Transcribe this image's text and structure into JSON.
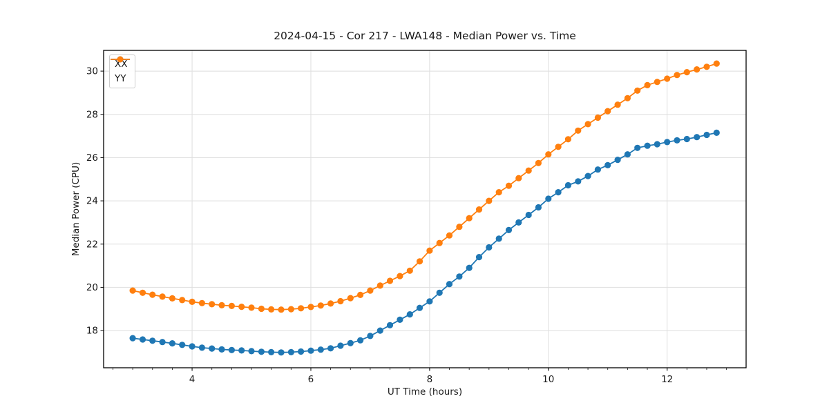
{
  "figure_title": "2024-04-15 - Cor 217 - LWA148 - Median Power vs. Time",
  "chart_data": {
    "type": "line",
    "title": "2024-04-15 - Cor 217 - LWA148 - Median Power vs. Time",
    "xlabel": "UT Time (hours)",
    "ylabel": "Median Power (CPU)",
    "xlim": [
      2.51,
      13.33
    ],
    "ylim": [
      16.28,
      30.96
    ],
    "xticks": [
      4,
      6,
      8,
      10,
      12
    ],
    "x_minor_tick_step": 0.33333,
    "yticks": [
      18,
      20,
      22,
      24,
      26,
      28,
      30
    ],
    "grid": true,
    "legend_position": "upper left",
    "marker": "circle",
    "x": [
      3.0,
      3.167,
      3.333,
      3.5,
      3.667,
      3.833,
      4.0,
      4.167,
      4.333,
      4.5,
      4.667,
      4.833,
      5.0,
      5.167,
      5.333,
      5.5,
      5.667,
      5.833,
      6.0,
      6.167,
      6.333,
      6.5,
      6.667,
      6.833,
      7.0,
      7.167,
      7.333,
      7.5,
      7.667,
      7.833,
      8.0,
      8.167,
      8.333,
      8.5,
      8.667,
      8.833,
      9.0,
      9.167,
      9.333,
      9.5,
      9.667,
      9.833,
      10.0,
      10.167,
      10.333,
      10.5,
      10.667,
      10.833,
      11.0,
      11.167,
      11.333,
      11.5,
      11.667,
      11.833,
      12.0,
      12.167,
      12.333,
      12.5,
      12.667,
      12.833
    ],
    "series": [
      {
        "name": "XX",
        "color": "#1f77b4",
        "values": [
          17.65,
          17.59,
          17.53,
          17.47,
          17.41,
          17.34,
          17.27,
          17.21,
          17.17,
          17.13,
          17.1,
          17.08,
          17.05,
          17.02,
          17.0,
          16.99,
          17.0,
          17.03,
          17.07,
          17.12,
          17.18,
          17.3,
          17.42,
          17.55,
          17.75,
          18.0,
          18.25,
          18.5,
          18.75,
          19.05,
          19.35,
          19.75,
          20.15,
          20.5,
          20.9,
          21.4,
          21.85,
          22.25,
          22.65,
          23.0,
          23.35,
          23.7,
          24.1,
          24.4,
          24.72,
          24.9,
          25.15,
          25.45,
          25.65,
          25.9,
          26.15,
          26.45,
          26.55,
          26.62,
          26.72,
          26.8,
          26.86,
          26.95,
          27.05,
          27.15
        ]
      },
      {
        "name": "YY",
        "color": "#ff7f0e",
        "values": [
          19.85,
          19.75,
          19.66,
          19.57,
          19.49,
          19.41,
          19.33,
          19.27,
          19.22,
          19.17,
          19.14,
          19.1,
          19.06,
          19.01,
          18.98,
          18.97,
          18.99,
          19.03,
          19.09,
          19.16,
          19.25,
          19.36,
          19.5,
          19.65,
          19.85,
          20.08,
          20.3,
          20.52,
          20.77,
          21.2,
          21.7,
          22.05,
          22.4,
          22.8,
          23.2,
          23.6,
          24.0,
          24.4,
          24.7,
          25.05,
          25.4,
          25.75,
          26.15,
          26.5,
          26.85,
          27.25,
          27.55,
          27.85,
          28.15,
          28.45,
          28.75,
          29.1,
          29.35,
          29.5,
          29.65,
          29.82,
          29.95,
          30.08,
          30.2,
          30.35
        ]
      }
    ],
    "style_colors": {
      "grid": "#dedede",
      "spine": "#000000",
      "text": "#1a1a1a",
      "legend_border": "#cccccc"
    }
  }
}
